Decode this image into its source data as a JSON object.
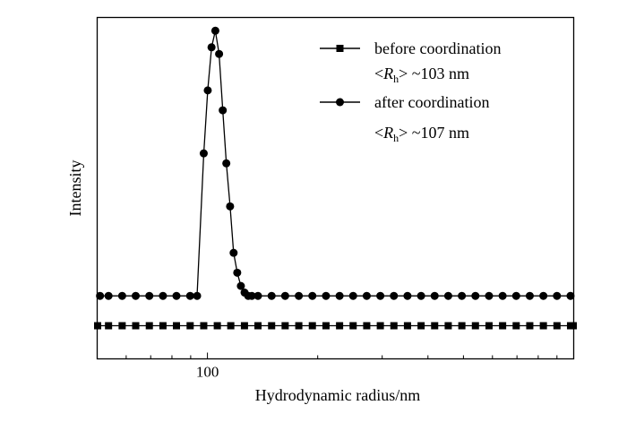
{
  "chart_data": {
    "type": "line",
    "xlabel": "Hydrodynamic radius/nm",
    "ylabel": "Intensity",
    "x_scale": "log",
    "xlim": [
      50,
      1000
    ],
    "ylim": [
      -0.03,
      1.0
    ],
    "x_ticks": [
      100
    ],
    "x_tick_labels": [
      "100"
    ],
    "y_ticks_labeled": false,
    "grid": false,
    "legend_position": "top-right",
    "series": [
      {
        "name": "before coordination",
        "note_prefix": "<",
        "note_symbol": "R",
        "note_subscript": "h",
        "note_suffix": "> ~103 nm",
        "marker": "square",
        "color": "#000000",
        "x": [
          49.3,
          53.7,
          58.5,
          63.7,
          69.4,
          75.6,
          82.3,
          89.7,
          97.7,
          106.4,
          115.8,
          126.2,
          137.4,
          149.7,
          163.0,
          177.6,
          193.4,
          210.7,
          229.5,
          249.9,
          272.2,
          296.5,
          322.9,
          351.7,
          383.1,
          417.2,
          454.4,
          495.0,
          539.1,
          587.2,
          639.6,
          696.6,
          758.7,
          826.4,
          900.1,
          980.3,
          1016.0
        ],
        "y": [
          0.07,
          0.07,
          0.07,
          0.07,
          0.07,
          0.07,
          0.07,
          0.07,
          0.07,
          0.07,
          0.07,
          0.07,
          0.07,
          0.07,
          0.07,
          0.07,
          0.07,
          0.07,
          0.07,
          0.07,
          0.07,
          0.07,
          0.07,
          0.07,
          0.07,
          0.07,
          0.07,
          0.07,
          0.07,
          0.07,
          0.07,
          0.07,
          0.07,
          0.07,
          0.07,
          0.07,
          0.07
        ]
      },
      {
        "name": "after coordination",
        "note_prefix": "<",
        "note_symbol": "R",
        "note_subscript": "h",
        "note_suffix": "> ~107 nm",
        "marker": "circle",
        "color": "#000000",
        "x": [
          50.9,
          53.7,
          58.5,
          63.7,
          69.4,
          75.6,
          82.3,
          89.7,
          93.7,
          97.7,
          100.2,
          102.6,
          105.1,
          107.6,
          110.1,
          112.6,
          115.3,
          117.9,
          120.6,
          123.4,
          126.3,
          129.2,
          132.2,
          137.4,
          149.7,
          163.0,
          177.6,
          193.4,
          210.7,
          229.5,
          249.9,
          272.2,
          296.5,
          322.9,
          351.7,
          383.1,
          417.2,
          454.4,
          495.0,
          539.1,
          587.2,
          639.6,
          696.6,
          758.7,
          826.4,
          900.1,
          980.3
        ],
        "y": [
          0.16,
          0.16,
          0.16,
          0.16,
          0.16,
          0.16,
          0.16,
          0.16,
          0.16,
          0.59,
          0.78,
          0.91,
          0.96,
          0.89,
          0.72,
          0.56,
          0.43,
          0.29,
          0.23,
          0.19,
          0.17,
          0.16,
          0.16,
          0.16,
          0.16,
          0.16,
          0.16,
          0.16,
          0.16,
          0.16,
          0.16,
          0.16,
          0.16,
          0.16,
          0.16,
          0.16,
          0.16,
          0.16,
          0.16,
          0.16,
          0.16,
          0.16,
          0.16,
          0.16,
          0.16,
          0.16,
          0.16
        ]
      }
    ]
  }
}
